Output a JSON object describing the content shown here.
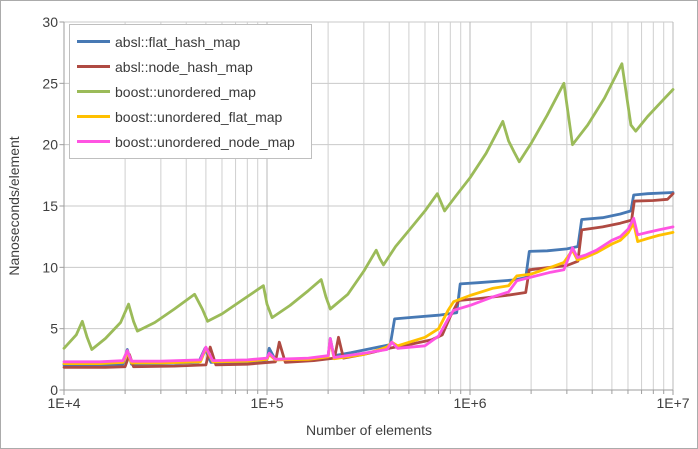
{
  "chart_data": {
    "type": "line",
    "title": "",
    "xlabel": "Number of elements",
    "ylabel": "Nanoseconds/element",
    "x_scale": "log",
    "xlim": [
      10000,
      10000000
    ],
    "ylim": [
      0,
      30
    ],
    "grid": "on",
    "legend_position": "top-left",
    "x_tick_labels": [
      "1E+4",
      "1E+5",
      "1E+6",
      "1E+7"
    ],
    "x_tick_values": [
      10000,
      100000,
      1000000,
      10000000
    ],
    "y_tick_labels": [
      "0",
      "5",
      "10",
      "15",
      "20",
      "25",
      "30"
    ],
    "y_tick_values": [
      0,
      5,
      10,
      15,
      20,
      25,
      30
    ],
    "series": [
      {
        "name": "absl::flat_hash_map",
        "color": "#4779B4",
        "points": [
          [
            10000,
            2.05
          ],
          [
            15000,
            2.05
          ],
          [
            19500,
            2.1
          ],
          [
            20500,
            3.3
          ],
          [
            21500,
            2.1
          ],
          [
            30000,
            2.15
          ],
          [
            46000,
            2.25
          ],
          [
            49500,
            3.4
          ],
          [
            53000,
            2.25
          ],
          [
            80000,
            2.3
          ],
          [
            100000,
            2.45
          ],
          [
            102500,
            3.4
          ],
          [
            110000,
            2.45
          ],
          [
            160000,
            2.55
          ],
          [
            200000,
            2.75
          ],
          [
            205000,
            4.2
          ],
          [
            213000,
            2.8
          ],
          [
            260000,
            3.05
          ],
          [
            320000,
            3.35
          ],
          [
            405000,
            3.7
          ],
          [
            425000,
            5.8
          ],
          [
            500000,
            5.9
          ],
          [
            700000,
            6.1
          ],
          [
            860000,
            6.3
          ],
          [
            895000,
            8.65
          ],
          [
            1100000,
            8.75
          ],
          [
            1600000,
            8.95
          ],
          [
            1880000,
            9.15
          ],
          [
            1960000,
            11.3
          ],
          [
            2400000,
            11.35
          ],
          [
            3000000,
            11.5
          ],
          [
            3400000,
            11.7
          ],
          [
            3550000,
            13.9
          ],
          [
            4500000,
            14.05
          ],
          [
            5500000,
            14.35
          ],
          [
            6200000,
            14.6
          ],
          [
            6400000,
            15.9
          ],
          [
            7500000,
            16.0
          ],
          [
            10000000,
            16.1
          ]
        ]
      },
      {
        "name": "absl::node_hash_map",
        "color": "#AF4A42",
        "points": [
          [
            10000,
            1.85
          ],
          [
            16000,
            1.85
          ],
          [
            20000,
            1.9
          ],
          [
            21000,
            2.9
          ],
          [
            22000,
            1.9
          ],
          [
            35000,
            1.95
          ],
          [
            50000,
            2.05
          ],
          [
            52500,
            3.5
          ],
          [
            56000,
            2.05
          ],
          [
            80000,
            2.1
          ],
          [
            110000,
            2.3
          ],
          [
            115000,
            3.9
          ],
          [
            123000,
            2.25
          ],
          [
            170000,
            2.4
          ],
          [
            215000,
            2.6
          ],
          [
            225000,
            4.3
          ],
          [
            238000,
            2.6
          ],
          [
            300000,
            2.9
          ],
          [
            400000,
            3.4
          ],
          [
            500000,
            3.7
          ],
          [
            650000,
            4.1
          ],
          [
            730000,
            4.5
          ],
          [
            800000,
            6.0
          ],
          [
            880000,
            7.3
          ],
          [
            1100000,
            7.45
          ],
          [
            1500000,
            7.7
          ],
          [
            1880000,
            7.95
          ],
          [
            1960000,
            9.8
          ],
          [
            2500000,
            10.0
          ],
          [
            3000000,
            10.15
          ],
          [
            3400000,
            10.5
          ],
          [
            3550000,
            13.05
          ],
          [
            4500000,
            13.3
          ],
          [
            5500000,
            13.6
          ],
          [
            6250000,
            13.85
          ],
          [
            6450000,
            15.4
          ],
          [
            8000000,
            15.45
          ],
          [
            9400000,
            15.55
          ],
          [
            10000000,
            16.0
          ]
        ]
      },
      {
        "name": "boost::unordered_map",
        "color": "#9BBB59",
        "points": [
          [
            10000,
            3.4
          ],
          [
            11500,
            4.5
          ],
          [
            12300,
            5.6
          ],
          [
            13000,
            4.3
          ],
          [
            13700,
            3.3
          ],
          [
            16000,
            4.2
          ],
          [
            19000,
            5.5
          ],
          [
            20800,
            7.0
          ],
          [
            22000,
            5.6
          ],
          [
            23000,
            4.8
          ],
          [
            28000,
            5.5
          ],
          [
            35000,
            6.6
          ],
          [
            44000,
            7.8
          ],
          [
            48000,
            6.6
          ],
          [
            51000,
            5.6
          ],
          [
            60000,
            6.2
          ],
          [
            75000,
            7.3
          ],
          [
            96000,
            8.5
          ],
          [
            100000,
            7.0
          ],
          [
            106000,
            5.9
          ],
          [
            130000,
            6.9
          ],
          [
            160000,
            8.1
          ],
          [
            185000,
            9.0
          ],
          [
            195000,
            7.6
          ],
          [
            205000,
            6.6
          ],
          [
            250000,
            7.8
          ],
          [
            300000,
            9.7
          ],
          [
            345000,
            11.4
          ],
          [
            360000,
            10.7
          ],
          [
            375000,
            10.2
          ],
          [
            430000,
            11.7
          ],
          [
            500000,
            13.0
          ],
          [
            600000,
            14.6
          ],
          [
            690000,
            16.0
          ],
          [
            720000,
            15.3
          ],
          [
            750000,
            14.6
          ],
          [
            850000,
            15.8
          ],
          [
            1000000,
            17.3
          ],
          [
            1200000,
            19.3
          ],
          [
            1450000,
            21.9
          ],
          [
            1550000,
            20.3
          ],
          [
            1650000,
            19.4
          ],
          [
            1750000,
            18.6
          ],
          [
            2000000,
            20.1
          ],
          [
            2400000,
            22.4
          ],
          [
            2900000,
            25.0
          ],
          [
            3200000,
            20.0
          ],
          [
            3800000,
            21.6
          ],
          [
            4600000,
            23.8
          ],
          [
            5600000,
            26.6
          ],
          [
            6200000,
            21.6
          ],
          [
            6550000,
            21.1
          ],
          [
            7500000,
            22.3
          ],
          [
            9000000,
            23.7
          ],
          [
            10000000,
            24.5
          ]
        ]
      },
      {
        "name": "boost::unordered_flat_map",
        "color": "#FFC000",
        "points": [
          [
            10000,
            2.15
          ],
          [
            15000,
            2.15
          ],
          [
            19500,
            2.25
          ],
          [
            20500,
            3.1
          ],
          [
            21500,
            2.2
          ],
          [
            30000,
            2.2
          ],
          [
            47000,
            2.3
          ],
          [
            50000,
            3.4
          ],
          [
            54000,
            2.3
          ],
          [
            80000,
            2.35
          ],
          [
            100000,
            2.5
          ],
          [
            102500,
            2.9
          ],
          [
            110000,
            2.45
          ],
          [
            160000,
            2.5
          ],
          [
            200000,
            2.7
          ],
          [
            205000,
            4.1
          ],
          [
            214000,
            2.55
          ],
          [
            300000,
            2.9
          ],
          [
            390000,
            3.5
          ],
          [
            412000,
            3.9
          ],
          [
            440000,
            3.6
          ],
          [
            600000,
            4.3
          ],
          [
            700000,
            5.0
          ],
          [
            780000,
            6.5
          ],
          [
            830000,
            7.2
          ],
          [
            1000000,
            7.7
          ],
          [
            1300000,
            8.3
          ],
          [
            1550000,
            8.5
          ],
          [
            1700000,
            9.3
          ],
          [
            2000000,
            9.45
          ],
          [
            2500000,
            10.0
          ],
          [
            2900000,
            10.4
          ],
          [
            3200000,
            11.4
          ],
          [
            3380000,
            10.6
          ],
          [
            3700000,
            10.8
          ],
          [
            4200000,
            11.2
          ],
          [
            5000000,
            11.9
          ],
          [
            5500000,
            12.2
          ],
          [
            6000000,
            12.8
          ],
          [
            6400000,
            13.6
          ],
          [
            6700000,
            12.1
          ],
          [
            7500000,
            12.35
          ],
          [
            8500000,
            12.6
          ],
          [
            10000000,
            12.85
          ]
        ]
      },
      {
        "name": "boost::unordered_node_map",
        "color": "#FF54E2",
        "points": [
          [
            10000,
            2.3
          ],
          [
            15000,
            2.3
          ],
          [
            19500,
            2.4
          ],
          [
            20500,
            3.2
          ],
          [
            21500,
            2.35
          ],
          [
            30000,
            2.35
          ],
          [
            47000,
            2.45
          ],
          [
            50000,
            3.5
          ],
          [
            54000,
            2.4
          ],
          [
            80000,
            2.45
          ],
          [
            100000,
            2.6
          ],
          [
            102500,
            3.0
          ],
          [
            110000,
            2.5
          ],
          [
            160000,
            2.6
          ],
          [
            200000,
            2.8
          ],
          [
            205000,
            4.2
          ],
          [
            214000,
            2.65
          ],
          [
            300000,
            3.0
          ],
          [
            390000,
            3.3
          ],
          [
            412000,
            3.9
          ],
          [
            440000,
            3.4
          ],
          [
            600000,
            3.6
          ],
          [
            700000,
            4.4
          ],
          [
            780000,
            5.8
          ],
          [
            830000,
            6.5
          ],
          [
            1000000,
            6.9
          ],
          [
            1300000,
            7.6
          ],
          [
            1550000,
            8.0
          ],
          [
            1700000,
            8.9
          ],
          [
            2000000,
            9.2
          ],
          [
            2500000,
            9.6
          ],
          [
            2900000,
            9.8
          ],
          [
            3200000,
            11.6
          ],
          [
            3380000,
            10.8
          ],
          [
            3700000,
            11.0
          ],
          [
            4200000,
            11.4
          ],
          [
            5000000,
            12.2
          ],
          [
            5500000,
            12.5
          ],
          [
            6000000,
            13.1
          ],
          [
            6400000,
            14.0
          ],
          [
            6700000,
            12.65
          ],
          [
            7500000,
            12.85
          ],
          [
            8500000,
            13.05
          ],
          [
            10000000,
            13.3
          ]
        ]
      }
    ]
  }
}
